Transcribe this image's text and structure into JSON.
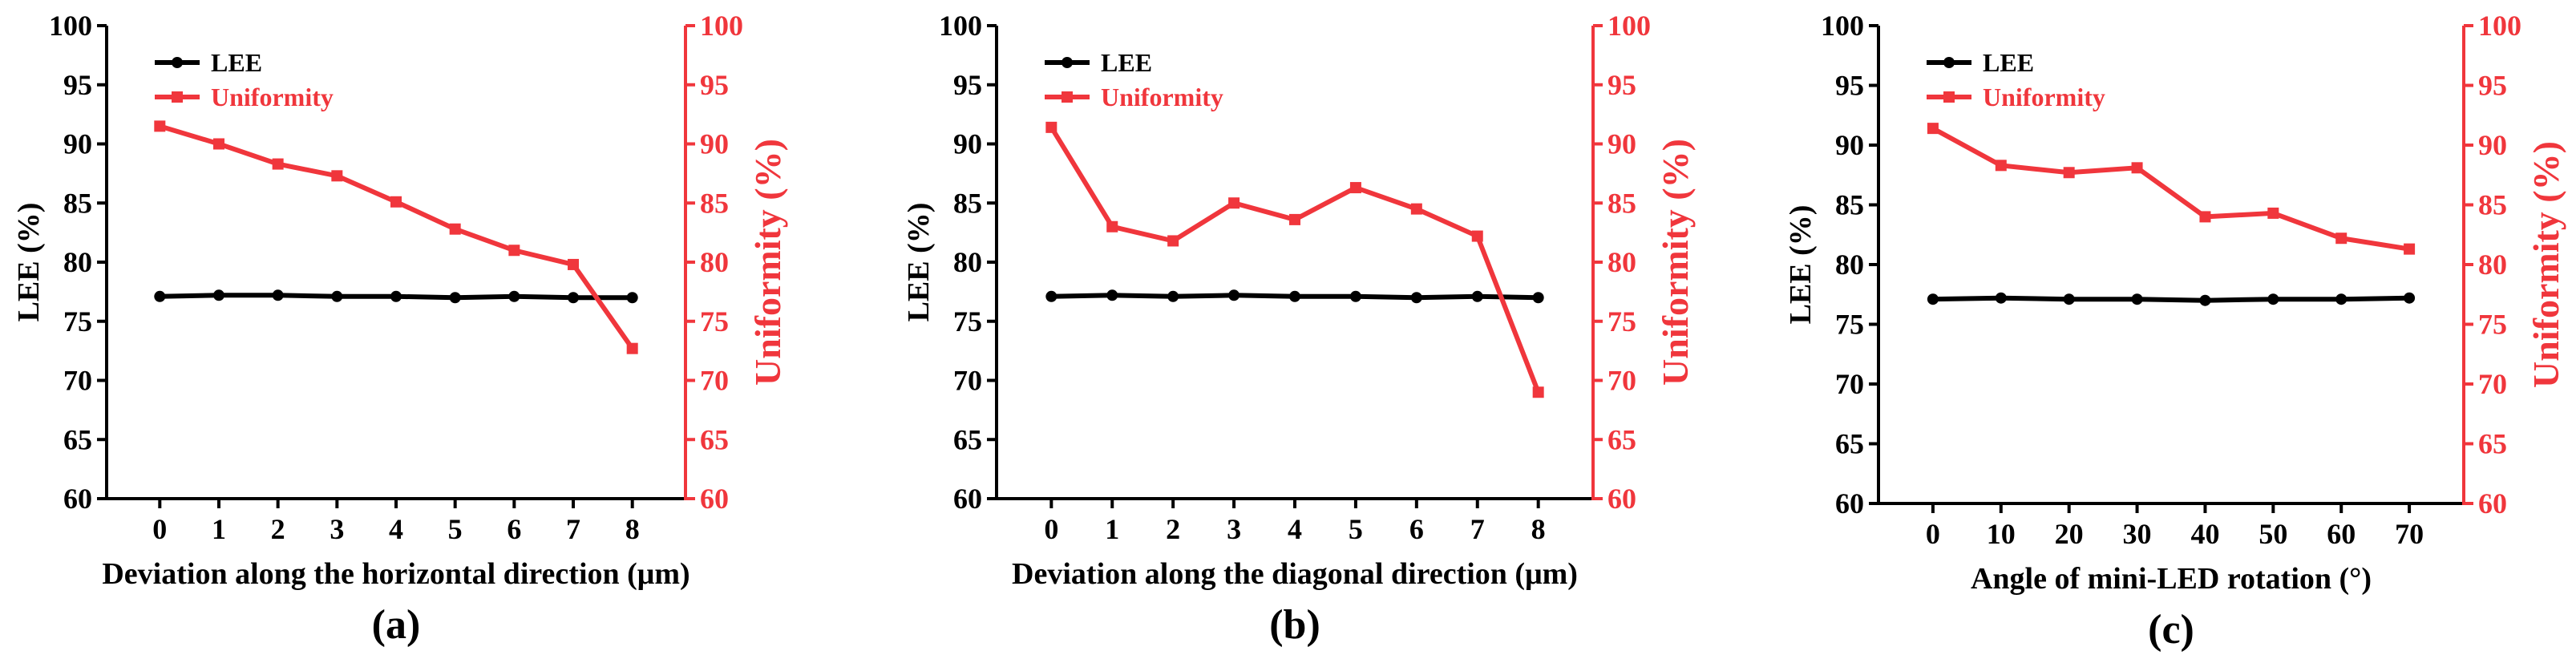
{
  "colors": {
    "lee": "#000000",
    "uniformity": "#f0363c",
    "axis": "#000000"
  },
  "chart_data": [
    {
      "type": "line",
      "panel_label": "(a)",
      "xlabel": "Deviation along the horizontal direction (μm)",
      "ylabel_left": "LEE (%)",
      "ylabel_right": "Uniformity (%)",
      "x": [
        0,
        1,
        2,
        3,
        4,
        5,
        6,
        7,
        8
      ],
      "x_tick_labels": [
        "0",
        "1",
        "2",
        "3",
        "4",
        "5",
        "6",
        "7",
        "8"
      ],
      "xlim": [
        -0.9,
        8.9
      ],
      "ylim_left": [
        60,
        100
      ],
      "ylim_right": [
        60,
        100
      ],
      "y_ticks": [
        "60",
        "65",
        "70",
        "75",
        "80",
        "85",
        "90",
        "95",
        "100"
      ],
      "legend_position": "top-left",
      "series": [
        {
          "name": "LEE",
          "axis": "left",
          "marker": "circle",
          "values": [
            77.1,
            77.2,
            77.2,
            77.1,
            77.1,
            77.0,
            77.1,
            77.0,
            77.0
          ]
        },
        {
          "name": "Uniformity",
          "axis": "right",
          "marker": "square",
          "values": [
            91.5,
            90.0,
            88.3,
            87.3,
            85.1,
            82.8,
            81.0,
            79.8,
            72.7
          ]
        }
      ]
    },
    {
      "type": "line",
      "panel_label": "(b)",
      "xlabel": "Deviation along the diagonal direction (μm)",
      "ylabel_left": "LEE (%)",
      "ylabel_right": "Uniformity (%)",
      "x": [
        0,
        1,
        2,
        3,
        4,
        5,
        6,
        7,
        8
      ],
      "x_tick_labels": [
        "0",
        "1",
        "2",
        "3",
        "4",
        "5",
        "6",
        "7",
        "8"
      ],
      "xlim": [
        -0.9,
        8.9
      ],
      "ylim_left": [
        60,
        100
      ],
      "ylim_right": [
        60,
        100
      ],
      "y_ticks": [
        "60",
        "65",
        "70",
        "75",
        "80",
        "85",
        "90",
        "95",
        "100"
      ],
      "legend_position": "top-left",
      "series": [
        {
          "name": "LEE",
          "axis": "left",
          "marker": "circle",
          "values": [
            77.1,
            77.2,
            77.1,
            77.2,
            77.1,
            77.1,
            77.0,
            77.1,
            77.0
          ]
        },
        {
          "name": "Uniformity",
          "axis": "right",
          "marker": "square",
          "values": [
            91.4,
            83.0,
            81.8,
            85.0,
            83.6,
            86.3,
            84.5,
            82.2,
            69.0
          ]
        }
      ]
    },
    {
      "type": "line",
      "panel_label": "(c)",
      "xlabel": "Angle of mini-LED rotation (°)",
      "ylabel_left": "LEE (%)",
      "ylabel_right": "Uniformity (%)",
      "x": [
        0,
        10,
        20,
        30,
        40,
        50,
        60,
        70
      ],
      "x_tick_labels": [
        "0",
        "10",
        "20",
        "30",
        "40",
        "50",
        "60",
        "70"
      ],
      "xlim": [
        -8,
        78
      ],
      "ylim_left": [
        60,
        100
      ],
      "ylim_right": [
        60,
        100
      ],
      "y_ticks": [
        "60",
        "65",
        "70",
        "75",
        "80",
        "85",
        "90",
        "95",
        "100"
      ],
      "legend_position": "top-left",
      "series": [
        {
          "name": "LEE",
          "axis": "left",
          "marker": "circle",
          "values": [
            77.1,
            77.2,
            77.1,
            77.1,
            77.0,
            77.1,
            77.1,
            77.2
          ]
        },
        {
          "name": "Uniformity",
          "axis": "right",
          "marker": "square",
          "values": [
            91.4,
            88.3,
            87.7,
            88.1,
            84.0,
            84.3,
            82.2,
            81.3
          ]
        }
      ]
    }
  ]
}
